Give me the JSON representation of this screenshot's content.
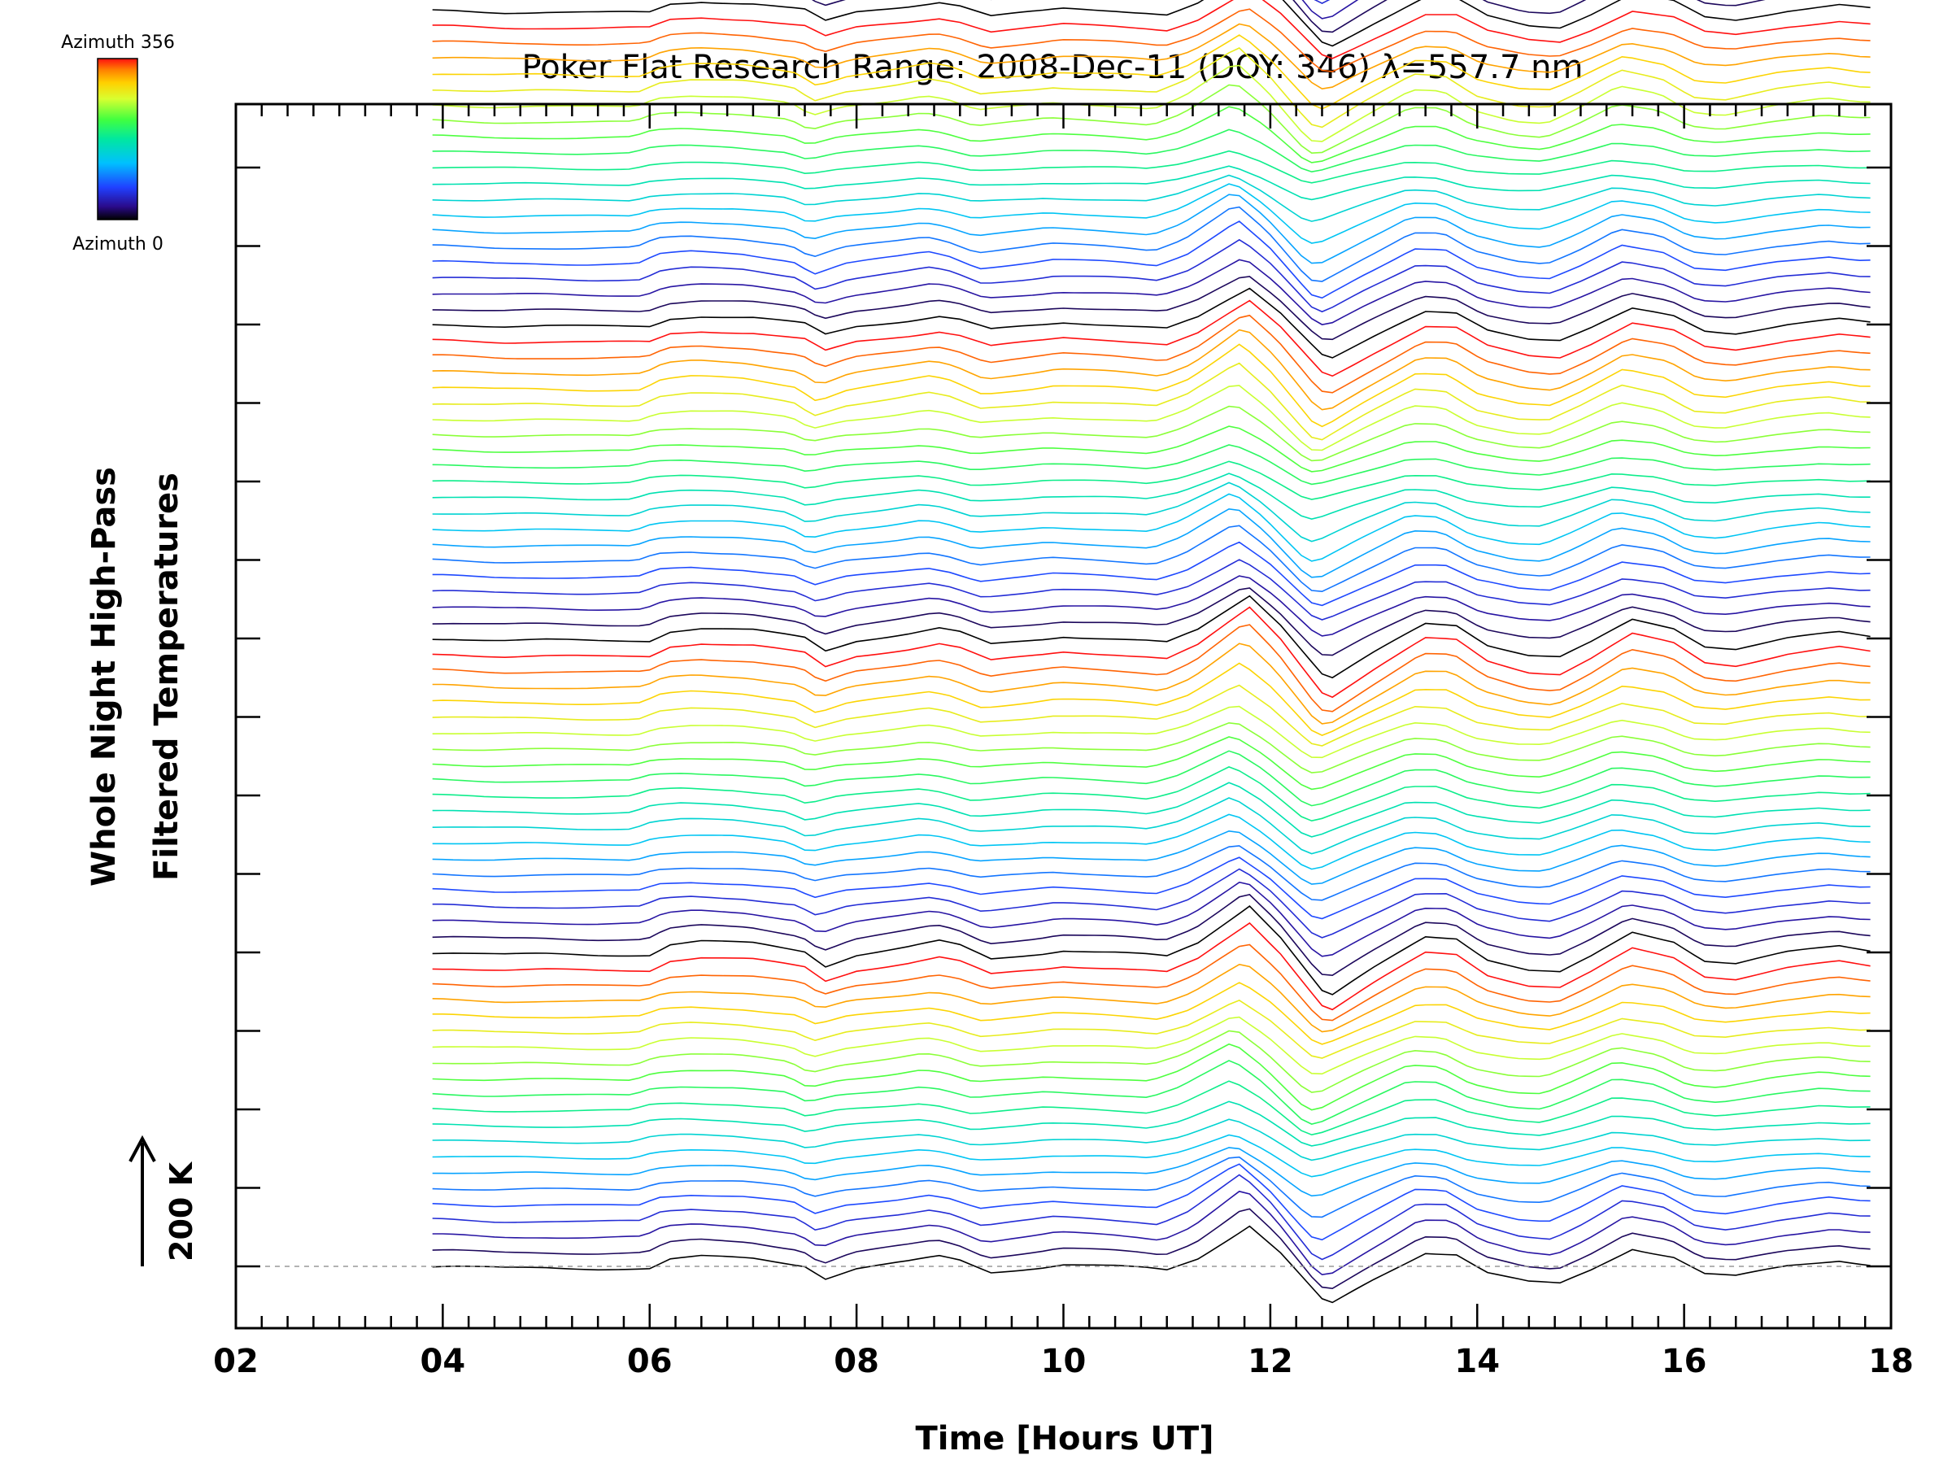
{
  "chart_data": {
    "type": "line",
    "title": "Poker Flat Research Range: 2008-Dec-11 (DOY: 346) λ=557.7 nm",
    "xlabel": "Time [Hours UT]",
    "ylabel_lines": [
      "Whole Night High-Pass",
      "Filtered Temperatures"
    ],
    "xlim": [
      2,
      18
    ],
    "x_tick_labels": [
      "02",
      "04",
      "06",
      "08",
      "10",
      "12",
      "14",
      "16",
      "18"
    ],
    "x_tick_values": [
      2,
      4,
      6,
      8,
      10,
      12,
      14,
      16,
      18
    ],
    "scale_bar": {
      "label": "200 K",
      "value_K": 200
    },
    "colorbar": {
      "top_label": "Azimuth 356",
      "bottom_label": "Azimuth 0",
      "colormap": "rainbow",
      "range": [
        0,
        356
      ]
    },
    "grid": false,
    "legend": "none",
    "baseline_dashed": true,
    "series_count": 140,
    "series_offset_K": 40,
    "azimuth_cycle_length": 20,
    "azimuth_range": [
      0,
      356
    ],
    "time_start": 3.9,
    "time_end": 17.8,
    "time_step": 0.1,
    "base_profile": {
      "x": [
        3.9,
        4.1,
        4.6,
        5.0,
        5.5,
        6.0,
        6.2,
        6.5,
        7.0,
        7.5,
        7.7,
        8.0,
        8.5,
        8.8,
        9.0,
        9.3,
        9.8,
        10.0,
        10.5,
        10.8,
        11.0,
        11.3,
        11.8,
        12.1,
        12.5,
        12.6,
        13.0,
        13.5,
        13.8,
        14.1,
        14.5,
        14.8,
        15.1,
        15.5,
        15.9,
        16.2,
        16.5,
        17.0,
        17.5,
        17.8
      ],
      "y": [
        0,
        0,
        -5,
        -4,
        -6,
        -5,
        18,
        25,
        20,
        2,
        -30,
        -5,
        12,
        25,
        15,
        -15,
        -2,
        5,
        0,
        -5,
        -10,
        20,
        105,
        35,
        -85,
        -95,
        -35,
        35,
        32,
        -15,
        -40,
        -45,
        -10,
        45,
        25,
        -18,
        -25,
        0,
        15,
        5
      ]
    },
    "series_note": "Each trace is the base profile modulated per azimuth and offset upward by series_offset_K; bottom trace is azimuth 0 (black), colors cycle through the rainbow colormap by azimuth."
  }
}
